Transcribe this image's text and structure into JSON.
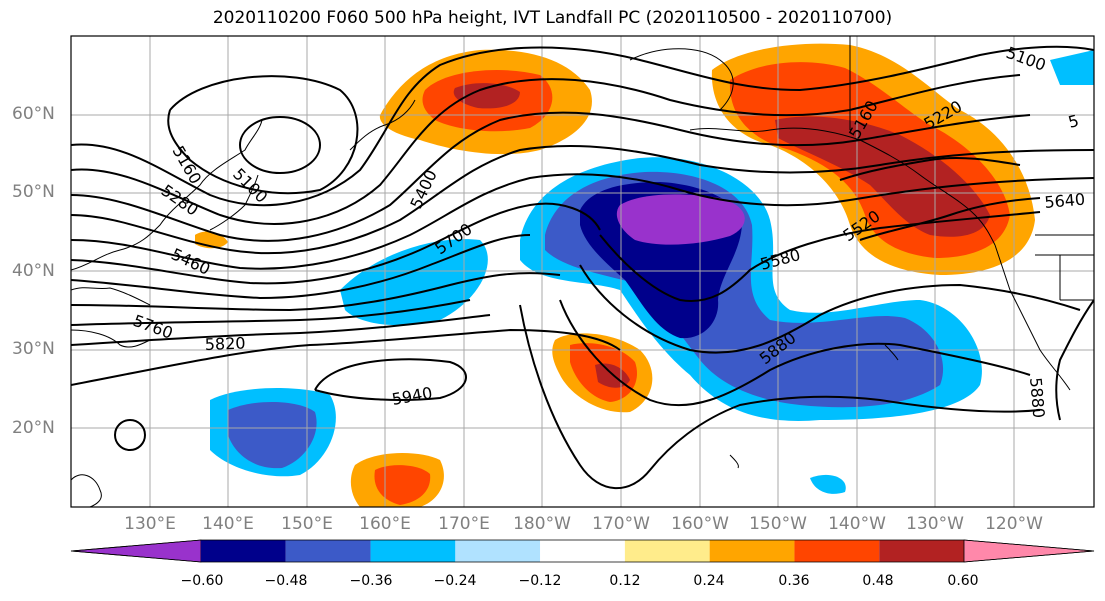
{
  "title": "2020110200 F060 500 hPa height, IVT Landfall PC (2020110500 - 2020110700)",
  "lat_labels": [
    "60°N",
    "50°N",
    "40°N",
    "30°N",
    "20°N"
  ],
  "lon_labels": [
    "130°E",
    "140°E",
    "150°E",
    "160°E",
    "170°E",
    "180°W",
    "170°W",
    "160°W",
    "150°W",
    "140°W",
    "130°W",
    "120°W"
  ],
  "colorbar": {
    "colors": [
      "#9932cc",
      "#00008b",
      "#3c5ac8",
      "#00bfff",
      "#b0e2ff",
      "#ffffff",
      "#ffec8b",
      "#ffa500",
      "#ff4500",
      "#b22222",
      "#ff88aa"
    ],
    "tick_labels": [
      "−0.60",
      "−0.48",
      "−0.36",
      "−0.24",
      "−0.12",
      "0.12",
      "0.24",
      "0.36",
      "0.48",
      "0.60"
    ]
  },
  "contour_labels": [
    "5100",
    "5160",
    "5100",
    "5280",
    "5460",
    "5400",
    "5700",
    "5580",
    "5520",
    "5640",
    "5820",
    "5880",
    "5760",
    "5940",
    "5220",
    "5160",
    "5880",
    "5"
  ]
}
